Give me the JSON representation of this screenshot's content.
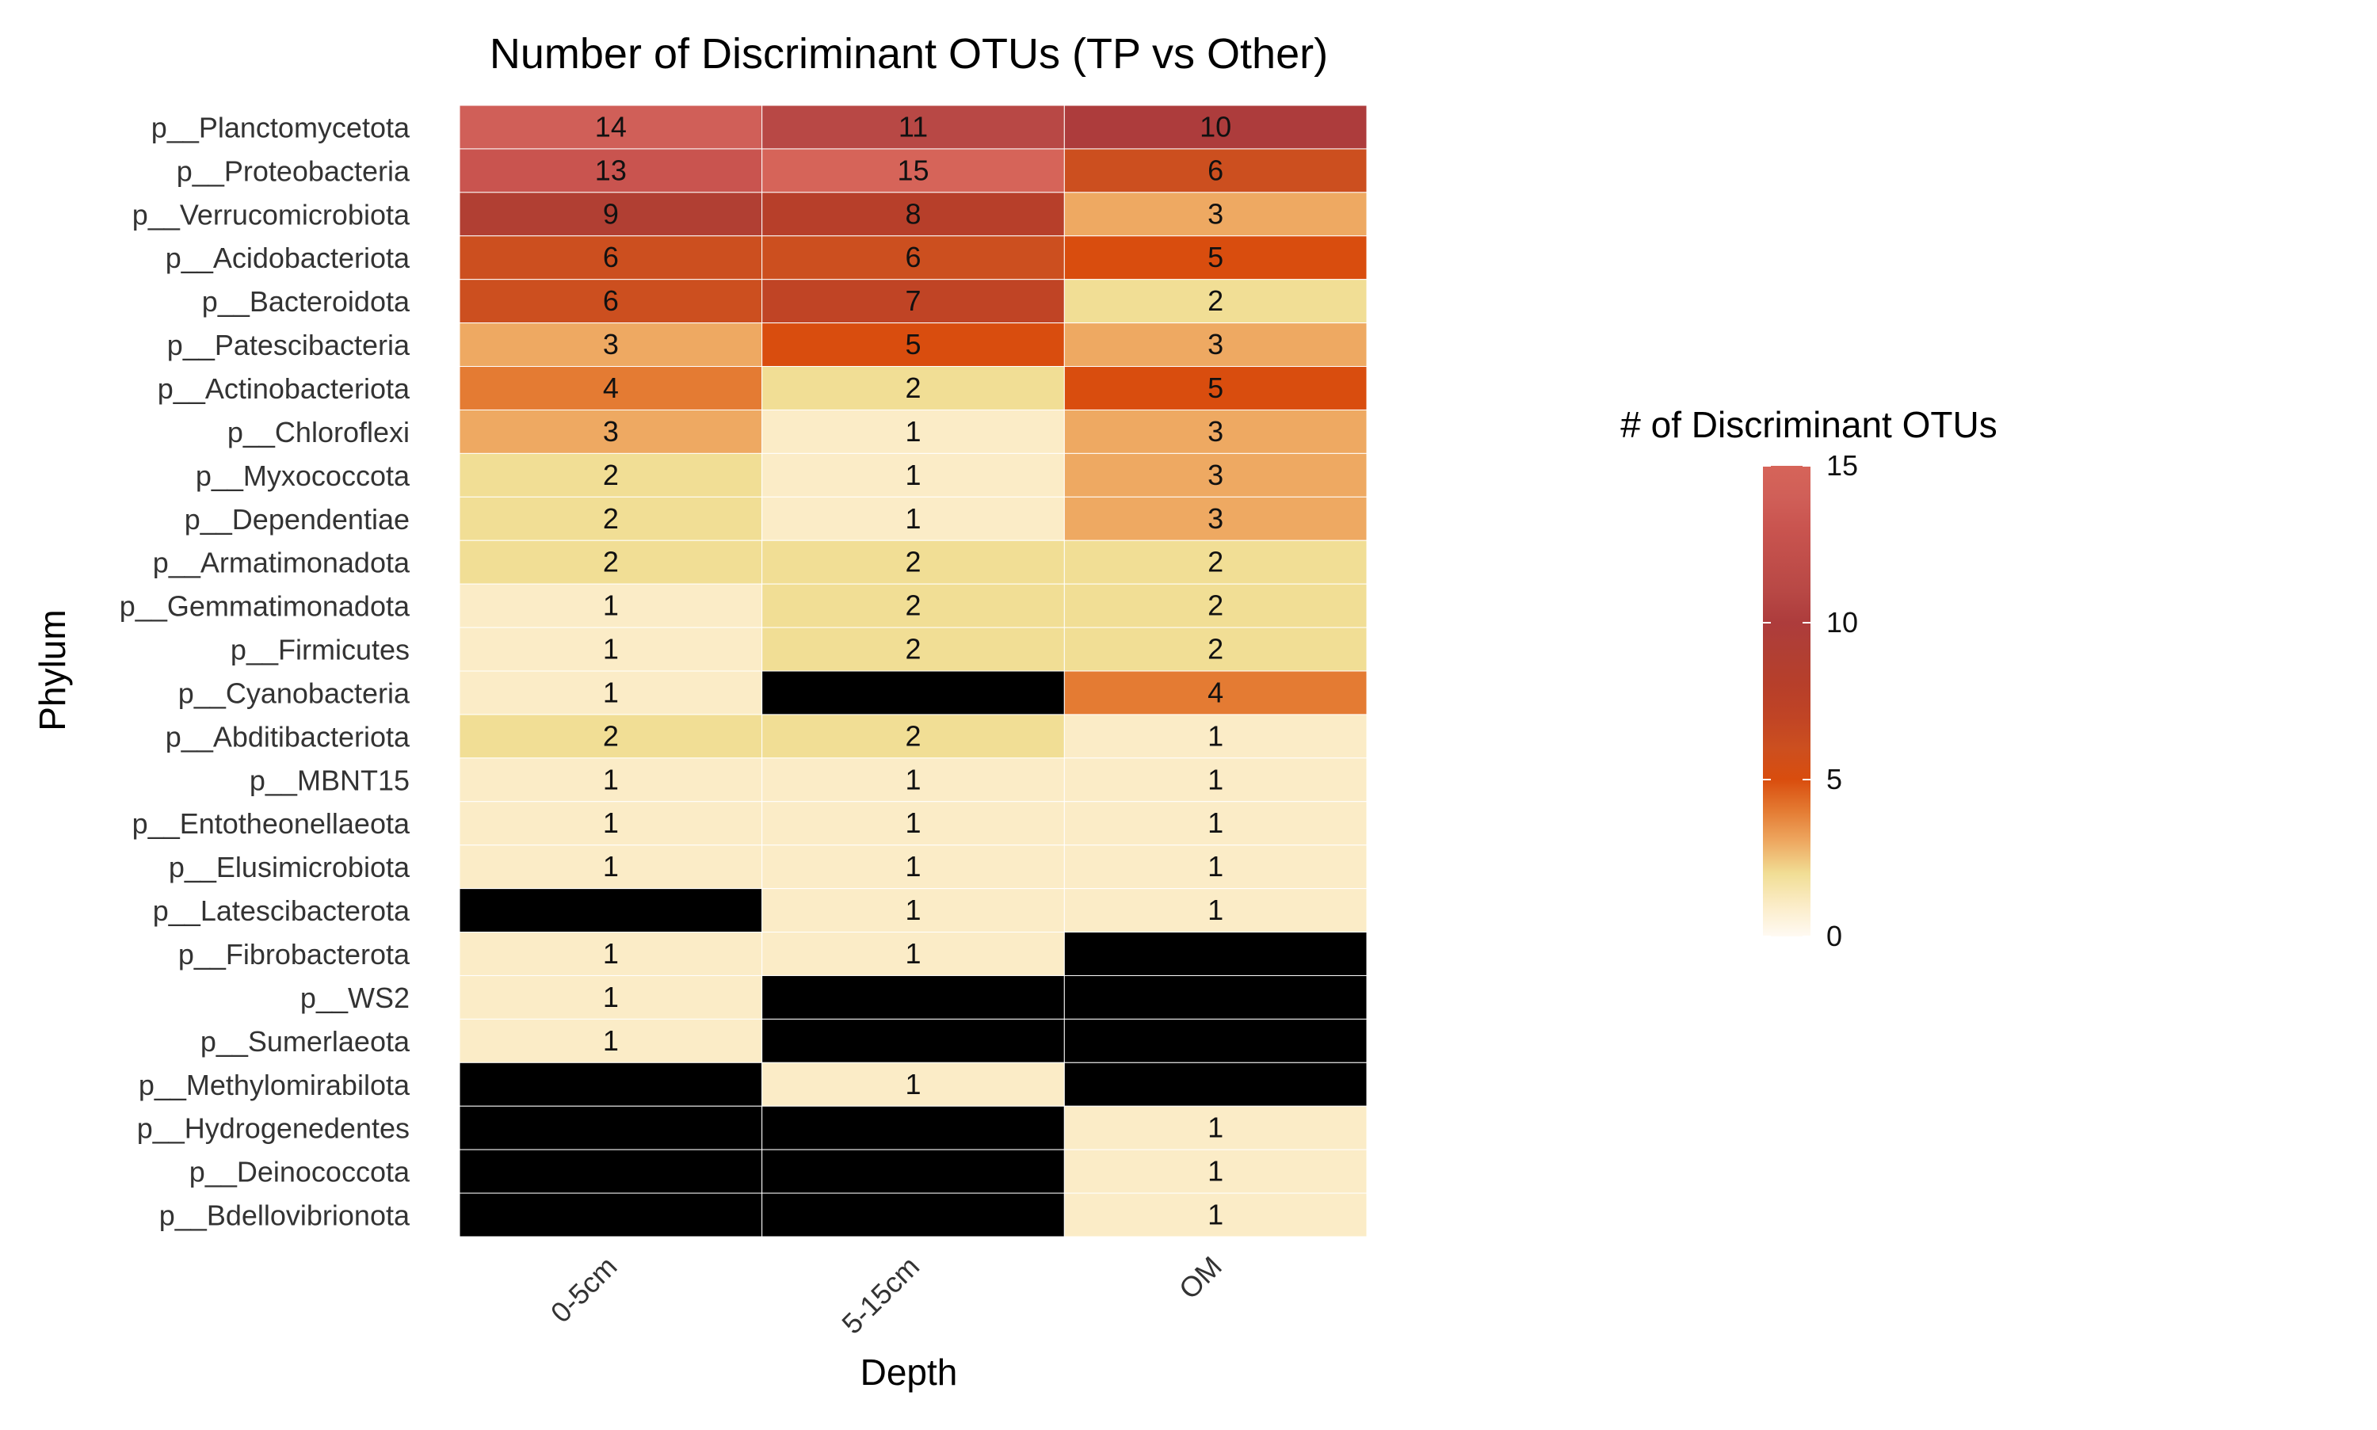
{
  "chart_data": {
    "type": "heatmap",
    "title": "Number of Discriminant OTUs (TP vs Other)",
    "xlabel": "Depth",
    "ylabel": "Phylum",
    "x_categories": [
      "0-5cm",
      "5-15cm",
      "OM"
    ],
    "y_categories": [
      "p__Planctomycetota",
      "p__Proteobacteria",
      "p__Verrucomicrobiota",
      "p__Acidobacteriota",
      "p__Bacteroidota",
      "p__Patescibacteria",
      "p__Actinobacteriota",
      "p__Chloroflexi",
      "p__Myxococcota",
      "p__Dependentiae",
      "p__Armatimonadota",
      "p__Gemmatimonadota",
      "p__Firmicutes",
      "p__Cyanobacteria",
      "p__Abditibacteriota",
      "p__MBNT15",
      "p__Entotheonellaeota",
      "p__Elusimicrobiota",
      "p__Latescibacterota",
      "p__Fibrobacterota",
      "p__WS2",
      "p__Sumerlaeota",
      "p__Methylomirabilota",
      "p__Hydrogenedentes",
      "p__Deinococcota",
      "p__Bdellovibrionota"
    ],
    "values": [
      [
        14,
        11,
        10
      ],
      [
        13,
        15,
        6
      ],
      [
        9,
        8,
        3
      ],
      [
        6,
        6,
        5
      ],
      [
        6,
        7,
        2
      ],
      [
        3,
        5,
        3
      ],
      [
        4,
        2,
        5
      ],
      [
        3,
        1,
        3
      ],
      [
        2,
        1,
        3
      ],
      [
        2,
        1,
        3
      ],
      [
        2,
        2,
        2
      ],
      [
        1,
        2,
        2
      ],
      [
        1,
        2,
        2
      ],
      [
        1,
        null,
        4
      ],
      [
        2,
        2,
        1
      ],
      [
        1,
        1,
        1
      ],
      [
        1,
        1,
        1
      ],
      [
        1,
        1,
        1
      ],
      [
        null,
        1,
        1
      ],
      [
        1,
        1,
        null
      ],
      [
        1,
        null,
        null
      ],
      [
        1,
        null,
        null
      ],
      [
        null,
        1,
        null
      ],
      [
        null,
        null,
        1
      ],
      [
        null,
        null,
        1
      ],
      [
        null,
        null,
        1
      ]
    ],
    "missing_color": "#000000",
    "color_scale": {
      "title": "# of Discriminant OTUs",
      "domain": [
        0,
        15
      ],
      "ticks": [
        0,
        5,
        10,
        15
      ],
      "stops": [
        {
          "value": 0,
          "color": "#fffaf3"
        },
        {
          "value": 1,
          "color": "#fbecc7"
        },
        {
          "value": 2,
          "color": "#f1de95"
        },
        {
          "value": 3,
          "color": "#eea962"
        },
        {
          "value": 4,
          "color": "#e47b33"
        },
        {
          "value": 5,
          "color": "#d94d0e"
        },
        {
          "value": 6,
          "color": "#cc4f1f"
        },
        {
          "value": 7,
          "color": "#c04425"
        },
        {
          "value": 8,
          "color": "#b73f2a"
        },
        {
          "value": 9,
          "color": "#b13f33"
        },
        {
          "value": 10,
          "color": "#ad3c3c"
        },
        {
          "value": 11,
          "color": "#b84845"
        },
        {
          "value": 13,
          "color": "#c9544f"
        },
        {
          "value": 14,
          "color": "#d05f58"
        },
        {
          "value": 15,
          "color": "#d66459"
        }
      ]
    },
    "legend_position": "right",
    "grid": false
  }
}
